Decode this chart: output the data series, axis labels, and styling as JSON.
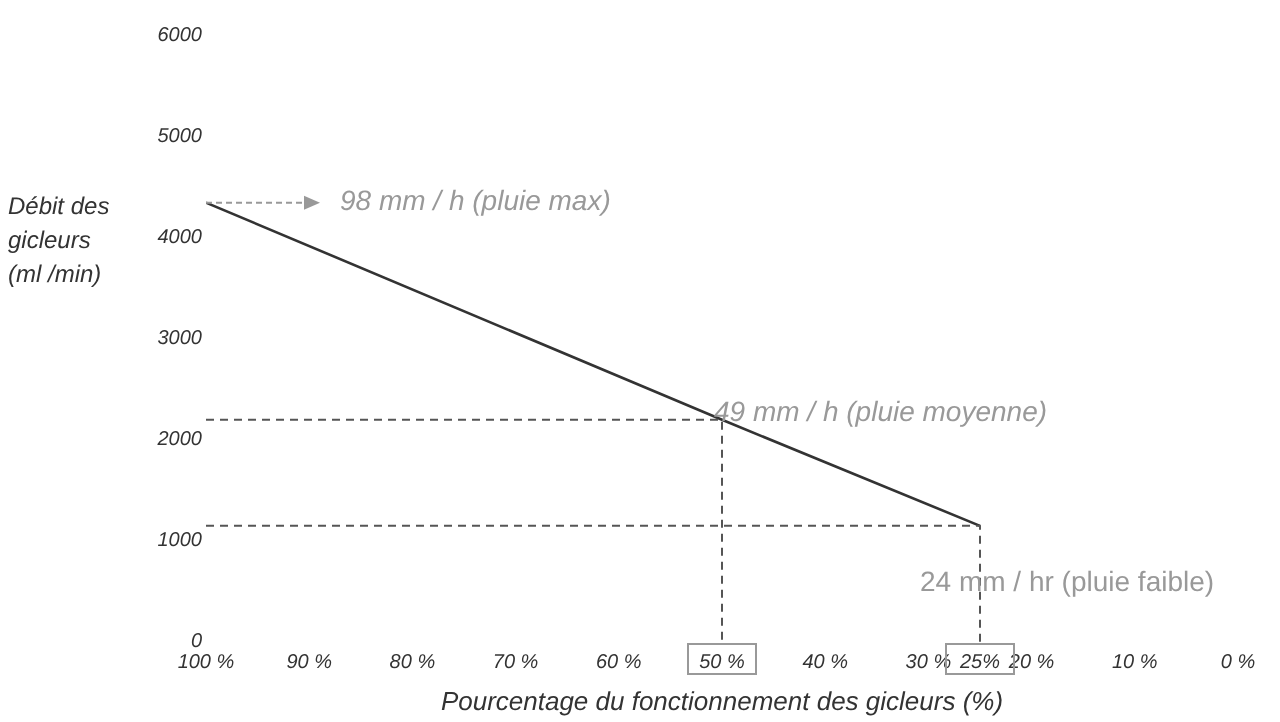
{
  "chart_data": {
    "type": "line",
    "xlabel": "Pourcentage du fonctionnement des gicleurs (%)",
    "ylabel": "Débit des gicleurs (ml /min)",
    "xlim": [
      100,
      0
    ],
    "xticks": [
      {
        "value": 100,
        "label": "100 %"
      },
      {
        "value": 90,
        "label": "90 %"
      },
      {
        "value": 80,
        "label": "80 %"
      },
      {
        "value": 70,
        "label": "70 %"
      },
      {
        "value": 60,
        "label": "60 %"
      },
      {
        "value": 50,
        "label": "50 %"
      },
      {
        "value": 40,
        "label": "40 %"
      },
      {
        "value": 30,
        "label": "30 %"
      },
      {
        "value": 25,
        "label": "25%"
      },
      {
        "value": 20,
        "label": "20 %"
      },
      {
        "value": 10,
        "label": "10 %"
      },
      {
        "value": 0,
        "label": "0 %"
      }
    ],
    "ylim": [
      0,
      6000
    ],
    "yticks": [
      0,
      1000,
      2000,
      3000,
      4000,
      5000,
      6000
    ],
    "grid": false,
    "marker": "none",
    "series": [
      {
        "color": "#333333",
        "x": [
          100,
          50,
          25
        ],
        "values": [
          4350,
          2200,
          1150
        ],
        "line_style": "solid"
      },
      {
        "color": "#555555",
        "x": [
          100,
          50,
          50
        ],
        "values": [
          2200,
          2200,
          0
        ],
        "line_style": "dashed"
      },
      {
        "color": "#555555",
        "x": [
          100,
          25,
          25
        ],
        "values": [
          1150,
          1150,
          0
        ],
        "line_style": "dashed"
      }
    ],
    "annotations": [
      {
        "text": "98 mm / h  (pluie max)",
        "x": 100,
        "y": 4350
      },
      {
        "text": "49 mm / h (pluie moyenne)",
        "x": 50,
        "y": 2200
      },
      {
        "text": "24 mm / hr (pluie faible)",
        "x": 25,
        "y": 1150
      }
    ]
  }
}
